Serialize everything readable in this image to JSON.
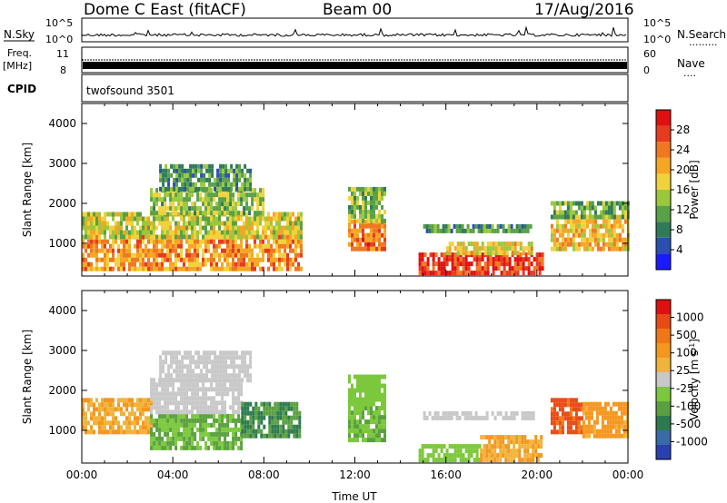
{
  "header": {
    "station": "Dome C East (fitACF)",
    "beam": "Beam 00",
    "date": "17/Aug/2016"
  },
  "strips": {
    "nsky_label": "N.Sky",
    "nsearch_label": "N.Search",
    "nsky_left_ticks": [
      "10^5",
      "10^0"
    ],
    "nsky_right_ticks": [
      "10^5",
      "10^0"
    ],
    "freq_label_top": "Freq.",
    "freq_label_unit": "[MHz]",
    "freq_left_ticks": [
      "11",
      "8"
    ],
    "nave_label": "Nave",
    "nave_right_ticks": [
      "60",
      "0"
    ],
    "cpid_label": "CPID",
    "cpid_value": "twofsound 3501"
  },
  "chart_data": [
    {
      "type": "heatmap",
      "name": "power",
      "ylabel": "Slant Range [km]",
      "ylim": [
        180,
        4500
      ],
      "yticks": [
        1000,
        2000,
        3000,
        4000
      ],
      "xlim": [
        0,
        24
      ],
      "colorbar": {
        "label": "Power [dB]",
        "ticks": [
          "4",
          "8",
          "12",
          "16",
          "20",
          "24",
          "28"
        ],
        "colors": [
          "#1a1aff",
          "#2a4fb0",
          "#2f7a5a",
          "#5aa046",
          "#9ac83c",
          "#f0d23c",
          "#f5a623",
          "#f07820",
          "#e63c1e",
          "#e01010"
        ]
      },
      "regions": [
        {
          "t0": 0.0,
          "t1": 9.6,
          "r0": 300,
          "r1": 1100,
          "value": 22
        },
        {
          "t0": 0.0,
          "t1": 9.6,
          "r0": 1100,
          "r1": 1700,
          "value": 16
        },
        {
          "t0": 3.0,
          "t1": 8.0,
          "r0": 1700,
          "r1": 2300,
          "value": 14
        },
        {
          "t0": 3.4,
          "t1": 7.4,
          "r0": 2300,
          "r1": 2900,
          "value": 10
        },
        {
          "t0": 11.7,
          "t1": 13.3,
          "r0": 800,
          "r1": 1500,
          "value": 24
        },
        {
          "t0": 11.7,
          "t1": 13.3,
          "r0": 1500,
          "r1": 2300,
          "value": 14
        },
        {
          "t0": 14.8,
          "t1": 20.2,
          "r0": 200,
          "r1": 700,
          "value": 28
        },
        {
          "t0": 16.0,
          "t1": 19.8,
          "r0": 700,
          "r1": 1000,
          "value": 18
        },
        {
          "t0": 15.0,
          "t1": 19.8,
          "r0": 1250,
          "r1": 1450,
          "value": 10
        },
        {
          "t0": 20.6,
          "t1": 24.0,
          "r0": 800,
          "r1": 1600,
          "value": 20
        },
        {
          "t0": 20.6,
          "t1": 24.0,
          "r0": 1600,
          "r1": 2000,
          "value": 12
        }
      ]
    },
    {
      "type": "heatmap",
      "name": "velocity",
      "ylabel": "Slant Range [km]",
      "xlabel": "Time UT",
      "ylim": [
        180,
        4500
      ],
      "yticks": [
        1000,
        2000,
        3000,
        4000
      ],
      "xlim": [
        0,
        24
      ],
      "xticks": [
        "00:00",
        "04:00",
        "08:00",
        "12:00",
        "16:00",
        "20:00",
        "00:00"
      ],
      "colorbar": {
        "label": "Velocity [m s^-1]",
        "ticks": [
          "1000",
          "500",
          "100",
          "25",
          "-25",
          "-100",
          "-500",
          "-1000"
        ],
        "colors": [
          "#2a3fb0",
          "#3a6aa8",
          "#2e7a50",
          "#5aa040",
          "#7cc83c",
          "#c8c8c8",
          "#f0b43c",
          "#f5961e",
          "#f07814",
          "#e84a14",
          "#e01010"
        ]
      },
      "regions": [
        {
          "t0": 0.0,
          "t1": 3.0,
          "r0": 900,
          "r1": 1700,
          "value": 100
        },
        {
          "t0": 3.0,
          "t1": 7.0,
          "r0": 500,
          "r1": 1400,
          "value": -100
        },
        {
          "t0": 3.0,
          "t1": 7.0,
          "r0": 1400,
          "r1": 2200,
          "value": 0
        },
        {
          "t0": 3.4,
          "t1": 7.4,
          "r0": 2200,
          "r1": 2900,
          "value": 0
        },
        {
          "t0": 7.0,
          "t1": 9.6,
          "r0": 800,
          "r1": 1700,
          "value": -300
        },
        {
          "t0": 11.7,
          "t1": 13.3,
          "r0": 700,
          "r1": 1600,
          "value": -100
        },
        {
          "t0": 11.7,
          "t1": 13.3,
          "r0": 1600,
          "r1": 2300,
          "value": -60
        },
        {
          "t0": 14.8,
          "t1": 17.5,
          "r0": 200,
          "r1": 600,
          "value": -60
        },
        {
          "t0": 17.5,
          "t1": 20.2,
          "r0": 200,
          "r1": 800,
          "value": 100
        },
        {
          "t0": 15.0,
          "t1": 19.8,
          "r0": 1250,
          "r1": 1450,
          "value": 0
        },
        {
          "t0": 20.6,
          "t1": 22.0,
          "r0": 900,
          "r1": 1700,
          "value": 700
        },
        {
          "t0": 22.0,
          "t1": 24.0,
          "r0": 800,
          "r1": 1700,
          "value": 150
        }
      ]
    }
  ]
}
